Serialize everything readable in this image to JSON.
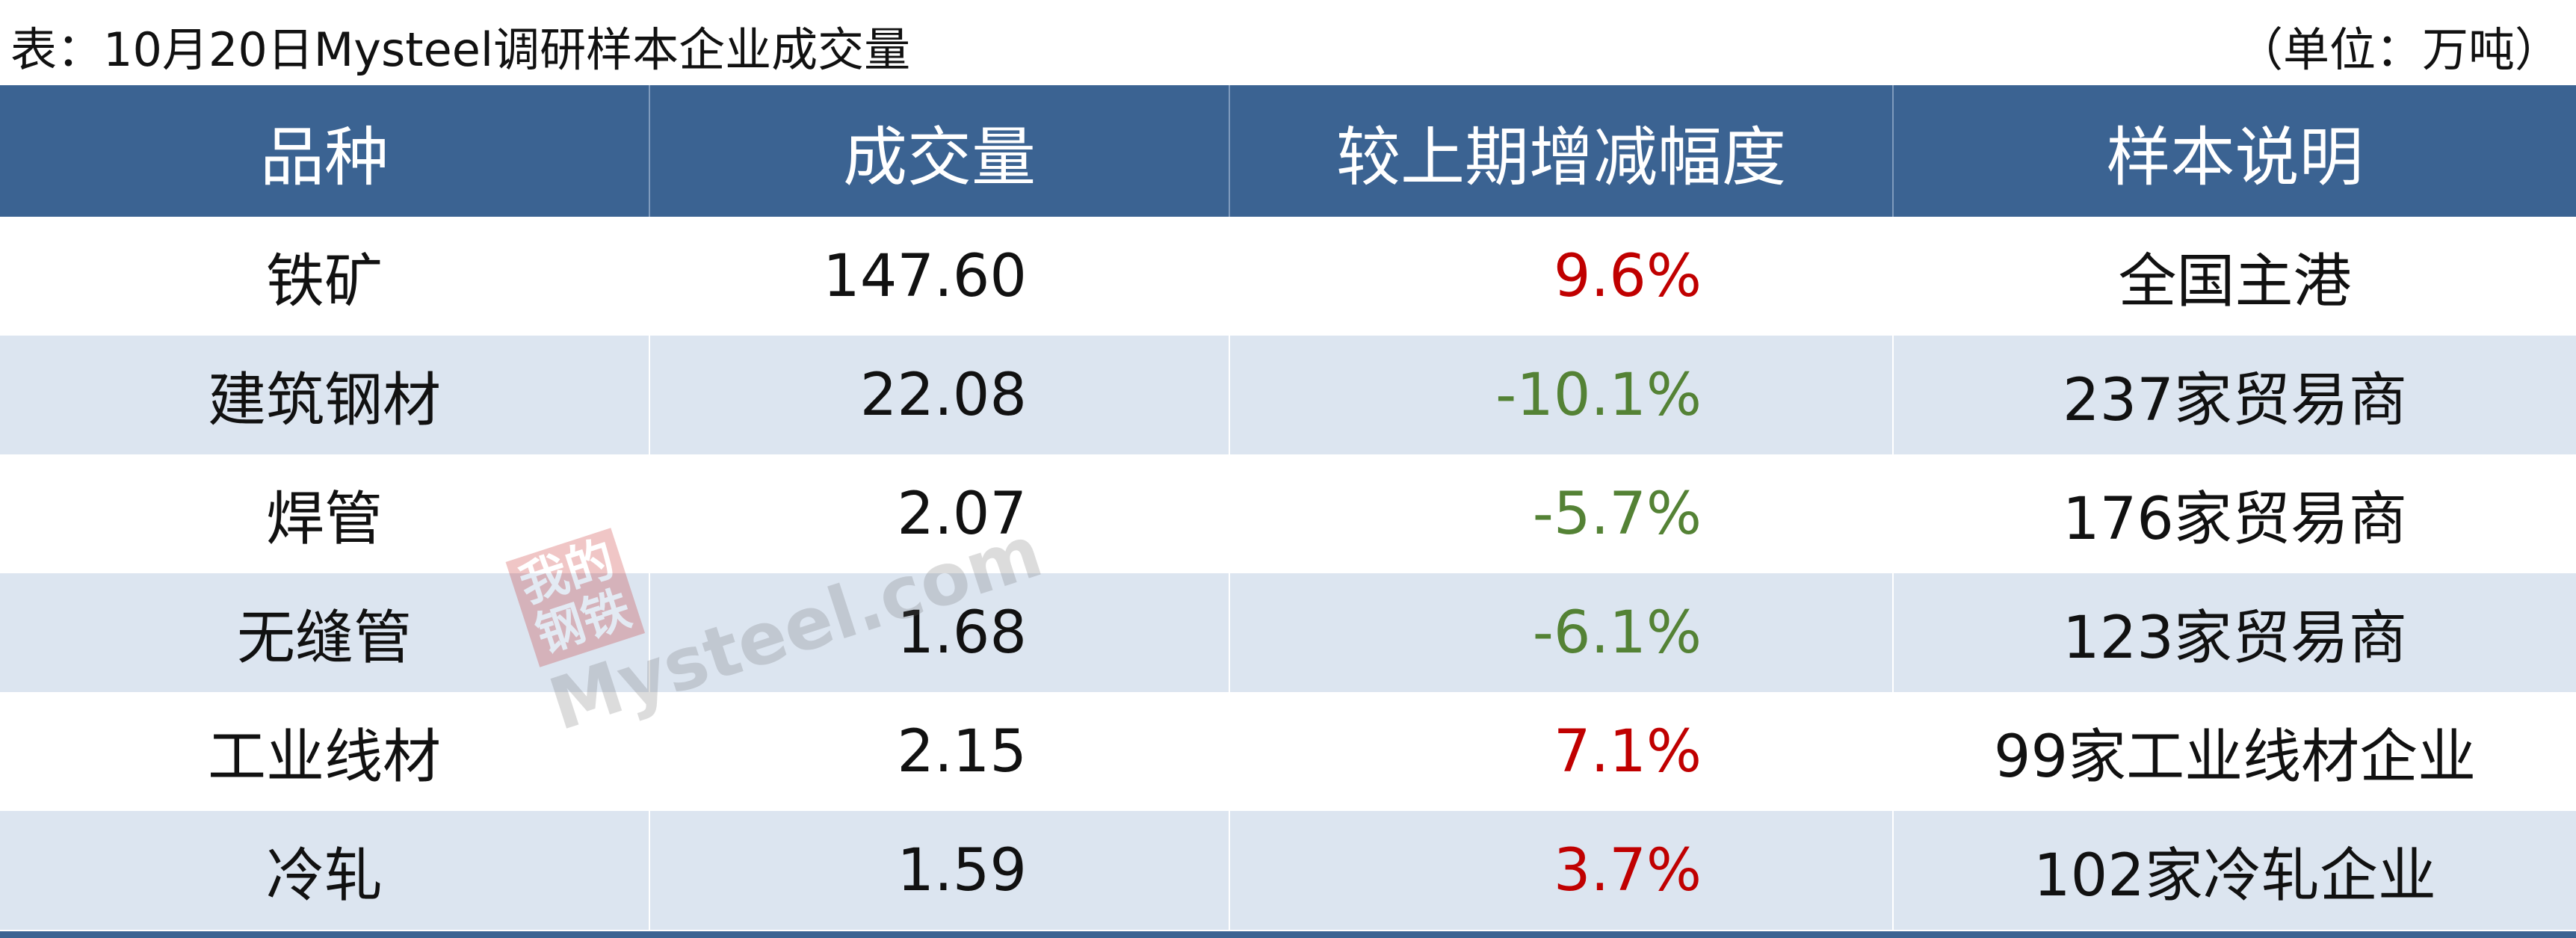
{
  "title": "表：10月20日Mysteel调研样本企业成交量",
  "unit": "（单位：万吨）",
  "table": {
    "header": [
      "品种",
      "成交量",
      "较上期增减幅度",
      "样本说明"
    ],
    "rows": [
      [
        "铁矿",
        "147.60",
        "9.6%",
        "全国主港"
      ],
      [
        "建筑钢材",
        "22.08",
        "-10.1%",
        "237家贸易商"
      ],
      [
        "焊管",
        "2.07",
        "-5.7%",
        "176家贸易商"
      ],
      [
        "无缝管",
        "1.68",
        "-6.1%",
        "123家贸易商"
      ],
      [
        "工业线材",
        "2.15",
        "7.1%",
        "99家工业线材企业"
      ],
      [
        "冷轧",
        "1.59",
        "3.7%",
        "102家冷轧企业"
      ]
    ]
  },
  "watermark": {
    "logo_top": "我的",
    "logo_bottom": "钢铁",
    "site": "Mysteel.com"
  }
}
